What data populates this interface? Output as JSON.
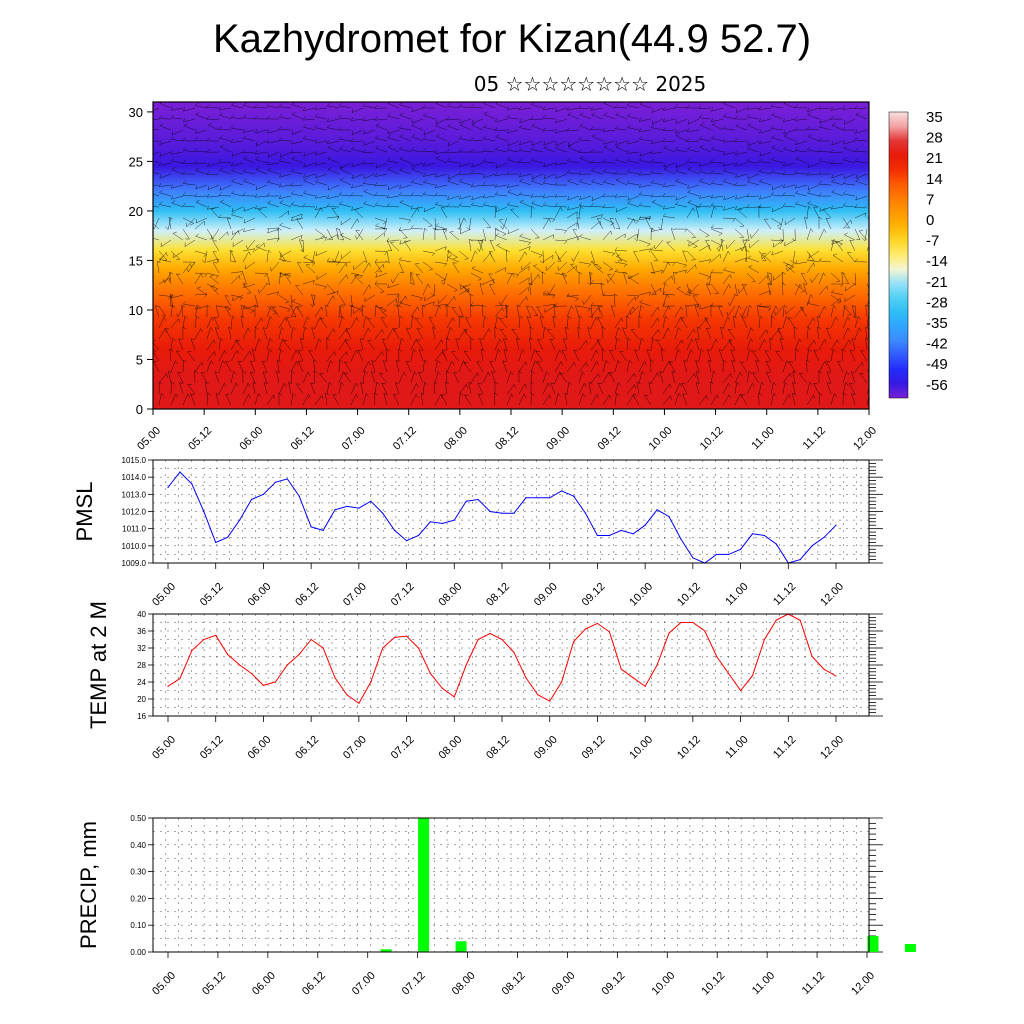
{
  "header": {
    "title": "Kazhydromet for Kizan(44.9 52.7)",
    "subtitle": "05 ☆☆☆☆☆☆☆☆ 2025"
  },
  "time_ticks": [
    "05.00",
    "05.12",
    "06.00",
    "06.12",
    "07.00",
    "07.12",
    "08.00",
    "08.12",
    "09.00",
    "09.12",
    "10.00",
    "10.12",
    "11.00",
    "11.12",
    "12.00"
  ],
  "colors": {
    "pmsl_line": "#0000ff",
    "temp_line": "#ff0000",
    "precip_bar": "#00ff00",
    "grid": "#000000"
  },
  "chart_data": [
    {
      "type": "heatmap",
      "title": "",
      "xlabel": "",
      "ylabel": "",
      "x_ticks": [
        "05.00",
        "05.12",
        "06.00",
        "06.12",
        "07.00",
        "07.12",
        "08.00",
        "08.12",
        "09.00",
        "09.12",
        "10.00",
        "10.12",
        "11.00",
        "11.12",
        "12.00"
      ],
      "y_ticks": [
        0,
        5,
        10,
        15,
        20,
        25,
        30
      ],
      "ylim": [
        0,
        31
      ],
      "levels": [
        {
          "y": 0,
          "value": 28
        },
        {
          "y": 3,
          "value": 28
        },
        {
          "y": 6,
          "value": 24
        },
        {
          "y": 9,
          "value": 18
        },
        {
          "y": 12,
          "value": 10
        },
        {
          "y": 14,
          "value": 2
        },
        {
          "y": 16,
          "value": -7
        },
        {
          "y": 18,
          "value": -18
        },
        {
          "y": 20,
          "value": -30
        },
        {
          "y": 22,
          "value": -42
        },
        {
          "y": 24.5,
          "value": -56
        },
        {
          "y": 27,
          "value": -58
        },
        {
          "y": 31,
          "value": -60
        }
      ],
      "colorbar": {
        "labels": [
          "35",
          "28",
          "21",
          "14",
          "7",
          "0",
          "-7",
          "-14",
          "-21",
          "-28",
          "-35",
          "-42",
          "-49",
          "-56"
        ],
        "range": [
          -60,
          39
        ]
      },
      "grid": false,
      "overlay": "wind barbs"
    },
    {
      "type": "line",
      "title": "",
      "xlabel": "",
      "ylabel": "PMSL",
      "ylim": [
        1009.0,
        1015.0
      ],
      "y_ticks": [
        "1009.0",
        "1010.0",
        "1011.0",
        "1012.0",
        "1013.0",
        "1014.0",
        "1015.0"
      ],
      "x_ticks": [
        "05.00",
        "05.12",
        "06.00",
        "06.12",
        "07.00",
        "07.12",
        "08.00",
        "08.12",
        "09.00",
        "09.12",
        "10.00",
        "10.12",
        "11.00",
        "11.12",
        "12.00"
      ],
      "grid": true,
      "series": [
        {
          "values": [
            1013.4,
            1014.3,
            1013.6,
            1012.0,
            1010.2,
            1010.5,
            1011.5,
            1012.7,
            1013.0,
            1013.7,
            1013.9,
            1012.9,
            1011.1,
            1010.9,
            1012.1,
            1012.3,
            1012.2,
            1012.6,
            1011.9,
            1010.9,
            1010.3,
            1010.6,
            1011.4,
            1011.3,
            1011.5,
            1012.6,
            1012.7,
            1012.0,
            1011.9,
            1011.9,
            1012.8,
            1012.8,
            1012.8,
            1013.2,
            1012.9,
            1011.9,
            1010.6,
            1010.6,
            1010.9,
            1010.7,
            1011.2,
            1012.1,
            1011.7,
            1010.4,
            1009.3,
            1009.0,
            1009.5,
            1009.5,
            1009.8,
            1010.7,
            1010.6,
            1010.1,
            1009.0,
            1009.2,
            1010.0,
            1010.5,
            1011.2
          ]
        }
      ]
    },
    {
      "type": "line",
      "title": "",
      "xlabel": "",
      "ylabel": "TEMP at 2 M",
      "ylim": [
        16,
        40
      ],
      "y_ticks": [
        "16",
        "20",
        "24",
        "28",
        "32",
        "36",
        "40"
      ],
      "x_ticks": [
        "05.00",
        "05.12",
        "06.00",
        "06.12",
        "07.00",
        "07.12",
        "08.00",
        "08.12",
        "09.00",
        "09.12",
        "10.00",
        "10.12",
        "11.00",
        "11.12",
        "12.00"
      ],
      "grid": true,
      "series": [
        {
          "values": [
            23.0,
            24.8,
            31.4,
            34.0,
            35.0,
            30.5,
            28.0,
            26.0,
            23.2,
            24.0,
            28.0,
            30.5,
            34.0,
            32.0,
            25.0,
            21.0,
            19.0,
            24.0,
            32.0,
            34.5,
            34.8,
            32.0,
            26.0,
            22.5,
            20.5,
            28.0,
            34.0,
            35.4,
            34.0,
            31.0,
            25.0,
            21.0,
            19.5,
            24.0,
            33.5,
            36.5,
            37.8,
            35.8,
            27.0,
            25.0,
            23.0,
            28.0,
            35.5,
            38.0,
            38.0,
            36.0,
            30.0,
            26.0,
            22.0,
            25.5,
            34.0,
            38.6,
            40.0,
            38.5,
            30.0,
            27.0,
            25.4
          ]
        }
      ]
    },
    {
      "type": "bar",
      "title": "",
      "xlabel": "",
      "ylabel": "PRECIP, mm",
      "ylim": [
        0,
        0.5
      ],
      "y_ticks": [
        "0.00",
        "0.10",
        "0.20",
        "0.30",
        "0.40",
        "0.50"
      ],
      "x_ticks": [
        "05.00",
        "05.12",
        "06.00",
        "06.12",
        "07.00",
        "07.12",
        "08.00",
        "08.12",
        "09.00",
        "09.12",
        "10.00",
        "10.12",
        "11.00",
        "11.12",
        "12.00"
      ],
      "grid": true,
      "series": [
        {
          "bars": [
            {
              "t": 18,
              "value": 0.01
            },
            {
              "t": 21,
              "value": 0.5
            },
            {
              "t": 24,
              "value": 0.04
            },
            {
              "t": 57,
              "value": 0.06
            },
            {
              "t": 60,
              "value": 0.03
            }
          ]
        }
      ]
    }
  ]
}
